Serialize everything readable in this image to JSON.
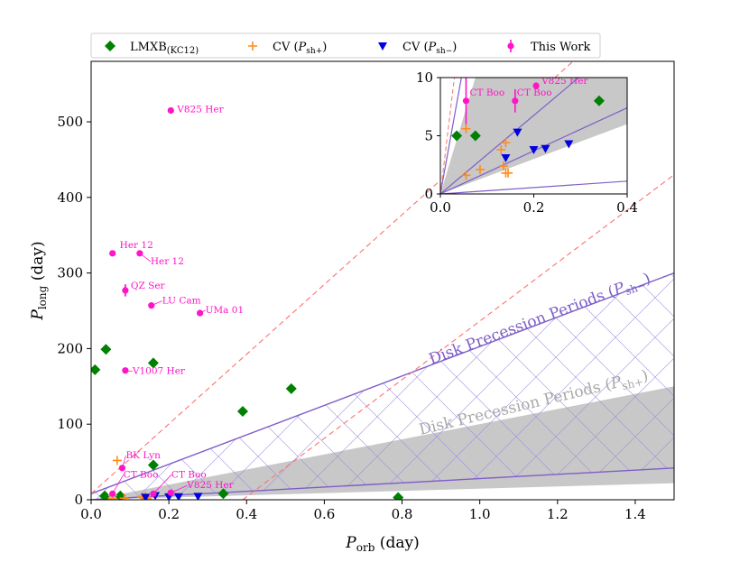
{
  "chart_data": [
    {
      "type": "scatter",
      "panel": "main",
      "xlabel": "P_orb (day)",
      "ylabel": "P_long (day)",
      "xlim": [
        0,
        1.5
      ],
      "ylim": [
        0,
        580
      ],
      "x_ticks": [
        "0.0",
        "0.2",
        "0.4",
        "0.6",
        "0.8",
        "1.0",
        "1.2",
        "1.4"
      ],
      "y_ticks": [
        "0",
        "100",
        "200",
        "300",
        "400",
        "500"
      ],
      "legend": {
        "placement": "top",
        "entries": [
          {
            "label": "LMXB",
            "sub": "(KC12)",
            "marker": "diamond",
            "color": "#008000"
          },
          {
            "label": "CV (P",
            "sub": "sh+",
            "suffix": ")",
            "marker": "plus",
            "color": "#ff8c1a"
          },
          {
            "label": "CV (P",
            "sub": "sh−",
            "suffix": ")",
            "marker": "triangle-down",
            "color": "#0000e0"
          },
          {
            "label": "This Work",
            "marker": "dot-errorbar",
            "color": "#ff14c8"
          }
        ]
      },
      "region_labels": {
        "upper": {
          "text": "Disk Precession Periods (P",
          "sub": "sh−",
          "suffix": ")",
          "color": "#7e5ec9"
        },
        "lower": {
          "text": "Disk Precession Periods (P",
          "sub": "sh+",
          "suffix": ")",
          "color": "#a8a8a8"
        }
      },
      "lines": {
        "diagonal_dashed": {
          "x": [
            0,
            1.5
          ],
          "y": [
            0,
            580
          ],
          "color": "#ff7070",
          "note_x_offset": 0
        },
        "diagonal_dashed_shifted": {
          "x": [
            0.39,
            1.5
          ],
          "y": [
            0,
            430
          ]
        },
        "upper_boundary_top": {
          "x": [
            0,
            1.5
          ],
          "y": [
            8,
            300
          ]
        },
        "upper_boundary_bottom": {
          "x": [
            0,
            1.5
          ],
          "y": [
            0,
            42
          ]
        },
        "shade_top": {
          "x": [
            0,
            1.5
          ],
          "y": [
            0,
            150
          ]
        },
        "shade_bottom": {
          "x": [
            0,
            1.5
          ],
          "y": [
            0,
            22
          ]
        }
      },
      "series": [
        {
          "name": "LMXB(KC12)",
          "marker": "diamond",
          "color": "#008000",
          "points": [
            {
              "x": 0.01,
              "y": 172
            },
            {
              "x": 0.038,
              "y": 199
            },
            {
              "x": 0.16,
              "y": 181
            },
            {
              "x": 0.39,
              "y": 117
            },
            {
              "x": 0.515,
              "y": 147
            },
            {
              "x": 0.16,
              "y": 46
            },
            {
              "x": 0.34,
              "y": 8
            },
            {
              "x": 0.79,
              "y": 3
            },
            {
              "x": 0.035,
              "y": 5
            },
            {
              "x": 0.075,
              "y": 5
            }
          ]
        },
        {
          "name": "CV (P_sh+)",
          "marker": "plus",
          "color": "#ff8c1a",
          "points": [
            {
              "x": 0.067,
              "y": 52
            },
            {
              "x": 0.055,
              "y": 5.6
            },
            {
              "x": 0.085,
              "y": 2.1
            },
            {
              "x": 0.13,
              "y": 3.8
            },
            {
              "x": 0.14,
              "y": 4.4
            },
            {
              "x": 0.135,
              "y": 2.4
            },
            {
              "x": 0.14,
              "y": 1.8
            },
            {
              "x": 0.145,
              "y": 1.8
            },
            {
              "x": 0.055,
              "y": 1.6
            }
          ]
        },
        {
          "name": "CV (P_sh−)",
          "marker": "triangle-down",
          "color": "#0000e0",
          "points": [
            {
              "x": 0.14,
              "y": 3.1
            },
            {
              "x": 0.165,
              "y": 5.3
            },
            {
              "x": 0.2,
              "y": 3.8
            },
            {
              "x": 0.225,
              "y": 3.9
            },
            {
              "x": 0.275,
              "y": 4.3
            }
          ]
        },
        {
          "name": "This Work",
          "marker": "dot-errorbar",
          "color": "#ff14c8",
          "points": [
            {
              "x": 0.205,
              "y": 515,
              "label": "V825 Her"
            },
            {
              "x": 0.055,
              "y": 326,
              "label": "Her 12"
            },
            {
              "x": 0.125,
              "y": 326,
              "label": "Her 12"
            },
            {
              "x": 0.088,
              "y": 277,
              "label": "QZ Ser",
              "err": 8
            },
            {
              "x": 0.155,
              "y": 257,
              "label": "LU Cam"
            },
            {
              "x": 0.28,
              "y": 247,
              "label": "UMa 01"
            },
            {
              "x": 0.088,
              "y": 171,
              "label": "V1007 Her"
            },
            {
              "x": 0.08,
              "y": 42,
              "label": "BK Lyn"
            },
            {
              "x": 0.055,
              "y": 8,
              "label": "CT Boo",
              "err": 2
            },
            {
              "x": 0.16,
              "y": 8,
              "label": "CT Boo",
              "err": 1
            },
            {
              "x": 0.205,
              "y": 9.3,
              "label": "V825 Her"
            }
          ]
        }
      ]
    },
    {
      "type": "scatter",
      "panel": "inset",
      "xlim": [
        0,
        0.4
      ],
      "ylim": [
        0,
        10
      ],
      "x_ticks": [
        "0.0",
        "0.2",
        "0.4"
      ],
      "y_ticks": [
        "0",
        "5",
        "10"
      ],
      "annotations": [
        "CT Boo",
        "CT Boo",
        "V825 Her"
      ]
    }
  ]
}
